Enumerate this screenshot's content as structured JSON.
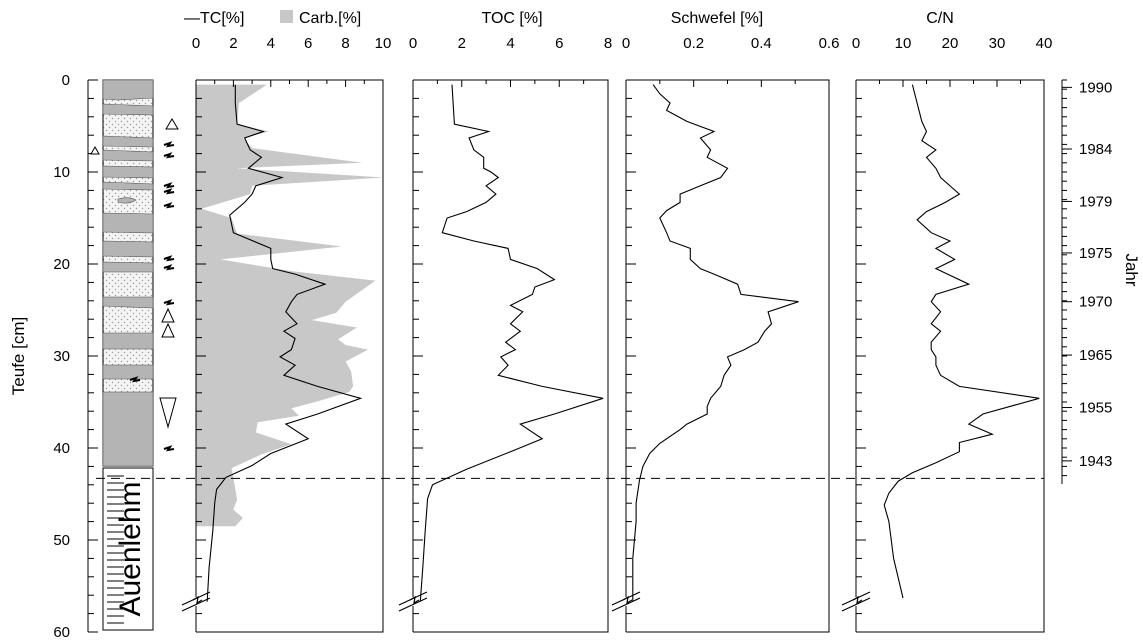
{
  "colors": {
    "line": "#000000",
    "carb_fill": "#c8c8c8",
    "core_dark": "#b4b4b4",
    "core_light": "#ececec",
    "dash": "#000000"
  },
  "chart_data": {
    "type": "line",
    "y_axis": {
      "label": "Teufe [cm]",
      "lim": [
        0,
        60
      ],
      "ticks": [
        "0",
        "10",
        "20",
        "30",
        "40",
        "50",
        "60"
      ],
      "inverted": true
    },
    "year_axis": {
      "label": "Jahr",
      "entries": [
        {
          "depth": 0.8,
          "year": "1990"
        },
        {
          "depth": 7.5,
          "year": "1984"
        },
        {
          "depth": 13.2,
          "year": "1979"
        },
        {
          "depth": 18.8,
          "year": "1975"
        },
        {
          "depth": 24.1,
          "year": "1970"
        },
        {
          "depth": 29.9,
          "year": "1965"
        },
        {
          "depth": 35.6,
          "year": "1955"
        },
        {
          "depth": 41.4,
          "year": "1943"
        }
      ]
    },
    "dashed_line_depth": 43.3,
    "core_label": "Auenlehm",
    "panels": [
      {
        "id": "tc-carb",
        "legend": {
          "line": "—TC[%]",
          "fill": "Carb.[%]"
        },
        "xlim": [
          0,
          10
        ],
        "ticks": [
          "0",
          "2",
          "4",
          "6",
          "8",
          "10"
        ],
        "series": [
          {
            "name": "TC[%]",
            "kind": "line",
            "points": [
              [
                2.1,
                0.5
              ],
              [
                2.1,
                2.5
              ],
              [
                2.2,
                4.8
              ],
              [
                3.6,
                5.6
              ],
              [
                2.6,
                6.3
              ],
              [
                2.9,
                7.6
              ],
              [
                3.5,
                8.4
              ],
              [
                2.8,
                9.6
              ],
              [
                4.6,
                10.6
              ],
              [
                3.2,
                11.5
              ],
              [
                3.0,
                12.4
              ],
              [
                2.6,
                13.3
              ],
              [
                1.8,
                14.7
              ],
              [
                2.0,
                16.6
              ],
              [
                4.0,
                18.3
              ],
              [
                4.0,
                19.5
              ],
              [
                4.1,
                20.5
              ],
              [
                5.3,
                21.1
              ],
              [
                6.9,
                22.2
              ],
              [
                5.4,
                23.3
              ],
              [
                5.1,
                24.1
              ],
              [
                4.8,
                25.2
              ],
              [
                5.4,
                26.5
              ],
              [
                4.7,
                27.3
              ],
              [
                5.3,
                28.1
              ],
              [
                5.1,
                29.3
              ],
              [
                4.5,
                30.1
              ],
              [
                5.3,
                31.0
              ],
              [
                4.7,
                32.1
              ],
              [
                6.5,
                33.3
              ],
              [
                8.8,
                34.6
              ],
              [
                6.5,
                36.3
              ],
              [
                4.8,
                37.4
              ],
              [
                6.0,
                39.0
              ],
              [
                4.0,
                40.6
              ],
              [
                3.0,
                41.9
              ],
              [
                1.6,
                43.2
              ],
              [
                1.1,
                44.5
              ],
              [
                1.0,
                46.0
              ],
              [
                0.9,
                49.0
              ],
              [
                0.7,
                53.0
              ],
              [
                0.6,
                56.7
              ]
            ]
          },
          {
            "name": "Carb.[%]",
            "kind": "fill",
            "points": [
              [
                3.8,
                0.5
              ],
              [
                2.3,
                2.5
              ],
              [
                2.2,
                4.8
              ],
              [
                3.9,
                5.6
              ],
              [
                2.5,
                6.3
              ],
              [
                3.0,
                7.4
              ],
              [
                8.9,
                9.0
              ],
              [
                2.2,
                9.6
              ],
              [
                10.0,
                10.6
              ],
              [
                3.0,
                11.5
              ],
              [
                2.9,
                12.4
              ],
              [
                0.3,
                14.0
              ],
              [
                1.9,
                15.0
              ],
              [
                2.2,
                16.7
              ],
              [
                7.8,
                18.1
              ],
              [
                1.3,
                19.5
              ],
              [
                5.2,
                20.8
              ],
              [
                9.6,
                21.8
              ],
              [
                8.0,
                24.1
              ],
              [
                7.5,
                25.3
              ],
              [
                6.2,
                26.1
              ],
              [
                8.6,
                26.9
              ],
              [
                7.6,
                28.2
              ],
              [
                8.0,
                28.8
              ],
              [
                9.2,
                29.3
              ],
              [
                8.0,
                30.6
              ],
              [
                8.3,
                31.7
              ],
              [
                8.4,
                33.3
              ],
              [
                8.2,
                33.9
              ],
              [
                6.7,
                34.8
              ],
              [
                5.1,
                35.7
              ],
              [
                5.5,
                36.5
              ],
              [
                3.3,
                37.2
              ],
              [
                3.2,
                38.3
              ],
              [
                5.1,
                39.6
              ],
              [
                3.5,
                40.7
              ],
              [
                1.9,
                42.2
              ],
              [
                2.0,
                43.3
              ],
              [
                2.2,
                45.6
              ],
              [
                2.0,
                46.7
              ],
              [
                2.5,
                47.6
              ],
              [
                2.1,
                48.5
              ]
            ]
          }
        ]
      },
      {
        "id": "toc",
        "title": "TOC [%]",
        "xlim": [
          0,
          8
        ],
        "ticks": [
          "0",
          "2",
          "4",
          "6",
          "8"
        ],
        "series": [
          {
            "name": "TOC [%]",
            "kind": "line",
            "points": [
              [
                1.6,
                0.5
              ],
              [
                1.7,
                4.8
              ],
              [
                3.1,
                5.6
              ],
              [
                2.3,
                6.3
              ],
              [
                2.5,
                7.6
              ],
              [
                2.9,
                8.4
              ],
              [
                2.9,
                9.6
              ],
              [
                3.2,
                10.0
              ],
              [
                3.5,
                10.6
              ],
              [
                3.0,
                11.5
              ],
              [
                3.4,
                12.4
              ],
              [
                3.0,
                13.3
              ],
              [
                2.2,
                14.3
              ],
              [
                1.4,
                15.0
              ],
              [
                1.2,
                16.6
              ],
              [
                2.5,
                17.5
              ],
              [
                3.9,
                18.3
              ],
              [
                4.0,
                19.5
              ],
              [
                5.1,
                20.5
              ],
              [
                5.8,
                21.7
              ],
              [
                5.0,
                22.5
              ],
              [
                4.9,
                23.3
              ],
              [
                4.0,
                24.5
              ],
              [
                4.5,
                25.2
              ],
              [
                4.0,
                26.5
              ],
              [
                4.4,
                27.3
              ],
              [
                3.8,
                28.5
              ],
              [
                4.2,
                29.3
              ],
              [
                3.6,
                30.1
              ],
              [
                3.9,
                31.0
              ],
              [
                3.5,
                32.1
              ],
              [
                5.3,
                33.3
              ],
              [
                7.8,
                34.6
              ],
              [
                5.8,
                36.3
              ],
              [
                4.4,
                37.4
              ],
              [
                5.3,
                39.0
              ],
              [
                4.0,
                40.4
              ],
              [
                2.2,
                42.3
              ],
              [
                0.8,
                44.0
              ],
              [
                0.6,
                45.5
              ],
              [
                0.5,
                49.0
              ],
              [
                0.4,
                53.0
              ],
              [
                0.3,
                56.7
              ]
            ]
          }
        ]
      },
      {
        "id": "schwefel",
        "title": "Schwefel [%]",
        "xlim": [
          0,
          0.6
        ],
        "ticks": [
          "0",
          "0.2",
          "0.4",
          "0.6"
        ],
        "series": [
          {
            "name": "Schwefel [%]",
            "kind": "line",
            "points": [
              [
                0.08,
                0.5
              ],
              [
                0.1,
                1.5
              ],
              [
                0.13,
                2.5
              ],
              [
                0.12,
                3.3
              ],
              [
                0.18,
                4.5
              ],
              [
                0.26,
                5.6
              ],
              [
                0.22,
                6.3
              ],
              [
                0.25,
                7.6
              ],
              [
                0.24,
                8.4
              ],
              [
                0.3,
                9.6
              ],
              [
                0.28,
                10.6
              ],
              [
                0.22,
                11.5
              ],
              [
                0.16,
                12.4
              ],
              [
                0.16,
                13.3
              ],
              [
                0.12,
                14.2
              ],
              [
                0.1,
                15.0
              ],
              [
                0.12,
                16.6
              ],
              [
                0.13,
                17.5
              ],
              [
                0.19,
                18.3
              ],
              [
                0.19,
                19.5
              ],
              [
                0.22,
                20.5
              ],
              [
                0.26,
                21.1
              ],
              [
                0.33,
                22.2
              ],
              [
                0.34,
                23.3
              ],
              [
                0.51,
                24.1
              ],
              [
                0.42,
                25.2
              ],
              [
                0.43,
                26.5
              ],
              [
                0.41,
                27.3
              ],
              [
                0.39,
                28.5
              ],
              [
                0.35,
                29.3
              ],
              [
                0.3,
                30.1
              ],
              [
                0.31,
                31.0
              ],
              [
                0.29,
                32.1
              ],
              [
                0.28,
                33.3
              ],
              [
                0.25,
                34.6
              ],
              [
                0.24,
                35.5
              ],
              [
                0.24,
                36.3
              ],
              [
                0.18,
                37.4
              ],
              [
                0.16,
                38.0
              ],
              [
                0.1,
                39.5
              ],
              [
                0.07,
                40.6
              ],
              [
                0.05,
                42.0
              ],
              [
                0.04,
                43.5
              ],
              [
                0.03,
                46.0
              ],
              [
                0.03,
                48.0
              ],
              [
                0.02,
                52.0
              ],
              [
                0.02,
                56.7
              ]
            ]
          }
        ]
      },
      {
        "id": "cn",
        "title": "C/N",
        "xlim": [
          0,
          40
        ],
        "ticks": [
          "0",
          "10",
          "20",
          "30",
          "40"
        ],
        "series": [
          {
            "name": "C/N",
            "kind": "line",
            "points": [
              [
                12,
                0.5
              ],
              [
                13,
                2.5
              ],
              [
                14,
                4.5
              ],
              [
                15,
                5.6
              ],
              [
                14,
                6.6
              ],
              [
                17,
                7.6
              ],
              [
                15,
                8.4
              ],
              [
                17,
                9.6
              ],
              [
                18,
                10.6
              ],
              [
                22,
                12.4
              ],
              [
                19,
                13.3
              ],
              [
                15,
                14.3
              ],
              [
                13,
                15.2
              ],
              [
                16,
                16.6
              ],
              [
                20,
                17.5
              ],
              [
                17,
                18.3
              ],
              [
                21,
                19.5
              ],
              [
                17,
                20.5
              ],
              [
                24,
                22.2
              ],
              [
                17,
                23.3
              ],
              [
                16,
                24.1
              ],
              [
                18,
                25.2
              ],
              [
                16,
                26.5
              ],
              [
                18,
                27.3
              ],
              [
                16,
                28.5
              ],
              [
                16,
                29.3
              ],
              [
                17,
                30.1
              ],
              [
                17,
                31.0
              ],
              [
                18,
                32.1
              ],
              [
                22,
                33.3
              ],
              [
                39,
                34.6
              ],
              [
                27,
                36.3
              ],
              [
                24,
                37.4
              ],
              [
                29,
                38.5
              ],
              [
                22,
                39.4
              ],
              [
                22,
                40.4
              ],
              [
                17,
                41.6
              ],
              [
                12,
                42.7
              ],
              [
                9,
                43.6
              ],
              [
                7,
                44.9
              ],
              [
                6,
                46.2
              ],
              [
                7,
                48.0
              ],
              [
                8,
                52.0
              ],
              [
                10,
                56.3
              ]
            ]
          }
        ]
      }
    ]
  }
}
